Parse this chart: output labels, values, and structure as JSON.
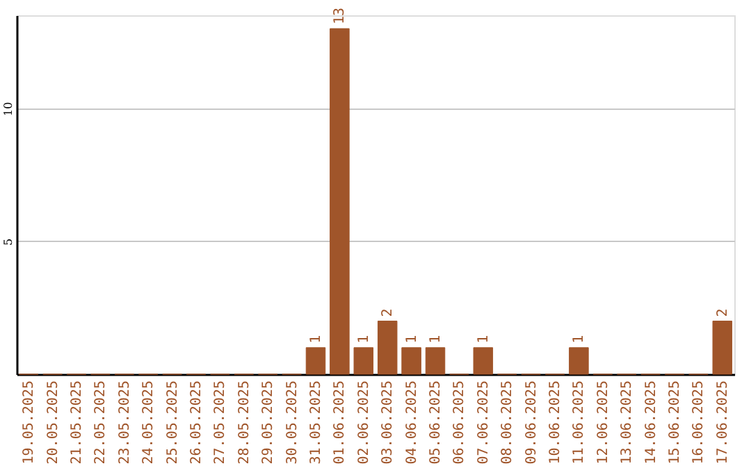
{
  "chart_data": {
    "type": "bar",
    "categories": [
      "19.05.2025",
      "20.05.2025",
      "21.05.2025",
      "22.05.2025",
      "23.05.2025",
      "24.05.2025",
      "25.05.2025",
      "26.05.2025",
      "27.05.2025",
      "28.05.2025",
      "29.05.2025",
      "30.05.2025",
      "31.05.2025",
      "01.06.2025",
      "02.06.2025",
      "03.06.2025",
      "04.06.2025",
      "05.06.2025",
      "06.06.2025",
      "07.06.2025",
      "08.06.2025",
      "09.06.2025",
      "10.06.2025",
      "11.06.2025",
      "12.06.2025",
      "13.06.2025",
      "14.06.2025",
      "15.06.2025",
      "16.06.2025",
      "17.06.2025"
    ],
    "values": [
      0,
      0,
      0,
      0,
      0,
      0,
      0,
      0,
      0,
      0,
      0,
      0,
      1,
      13,
      1,
      2,
      1,
      1,
      0,
      1,
      0,
      0,
      0,
      1,
      0,
      0,
      0,
      0,
      0,
      2
    ],
    "value_labels": [
      null,
      null,
      null,
      null,
      null,
      null,
      null,
      null,
      null,
      null,
      null,
      null,
      "1",
      "13",
      "1",
      "2",
      "1",
      "1",
      null,
      "1",
      null,
      null,
      null,
      "1",
      null,
      null,
      null,
      null,
      null,
      "2"
    ],
    "color": "#a0552a",
    "ylim": [
      0,
      13.5
    ],
    "yticks": [
      5,
      10
    ],
    "grid": "y"
  }
}
